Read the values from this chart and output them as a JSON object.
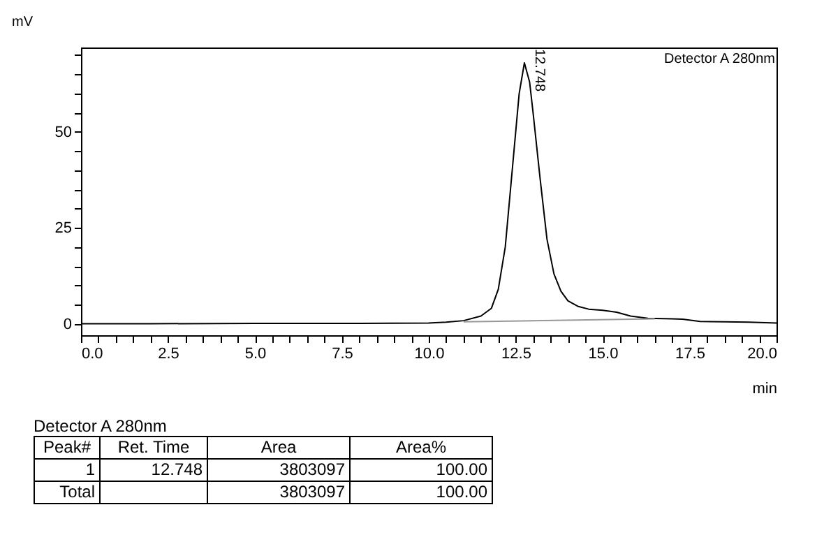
{
  "chart_data": {
    "type": "line",
    "xlabel": "min",
    "ylabel": "mV",
    "xlim": [
      0,
      20
    ],
    "ylim": [
      -3,
      72
    ],
    "xticks": [
      {
        "value": 0,
        "label": "0.0"
      },
      {
        "value": 0.5,
        "label": null
      },
      {
        "value": 1,
        "label": null
      },
      {
        "value": 1.5,
        "label": null
      },
      {
        "value": 2,
        "label": null
      },
      {
        "value": 2.5,
        "label": "2.5"
      },
      {
        "value": 3,
        "label": null
      },
      {
        "value": 3.5,
        "label": null
      },
      {
        "value": 4,
        "label": null
      },
      {
        "value": 4.5,
        "label": null
      },
      {
        "value": 5,
        "label": "5.0"
      },
      {
        "value": 5.5,
        "label": null
      },
      {
        "value": 6,
        "label": null
      },
      {
        "value": 6.5,
        "label": null
      },
      {
        "value": 7,
        "label": null
      },
      {
        "value": 7.5,
        "label": "7.5"
      },
      {
        "value": 8,
        "label": null
      },
      {
        "value": 8.5,
        "label": null
      },
      {
        "value": 9,
        "label": null
      },
      {
        "value": 9.5,
        "label": null
      },
      {
        "value": 10,
        "label": "10.0"
      },
      {
        "value": 10.5,
        "label": null
      },
      {
        "value": 11,
        "label": null
      },
      {
        "value": 11.5,
        "label": null
      },
      {
        "value": 12,
        "label": null
      },
      {
        "value": 12.5,
        "label": "12.5"
      },
      {
        "value": 13,
        "label": null
      },
      {
        "value": 13.5,
        "label": null
      },
      {
        "value": 14,
        "label": null
      },
      {
        "value": 14.5,
        "label": null
      },
      {
        "value": 15,
        "label": "15.0"
      },
      {
        "value": 15.5,
        "label": null
      },
      {
        "value": 16,
        "label": null
      },
      {
        "value": 16.5,
        "label": null
      },
      {
        "value": 17,
        "label": null
      },
      {
        "value": 17.5,
        "label": "17.5"
      },
      {
        "value": 18,
        "label": null
      },
      {
        "value": 18.5,
        "label": null
      },
      {
        "value": 19,
        "label": null
      },
      {
        "value": 19.5,
        "label": null
      },
      {
        "value": 20,
        "label": "20.0"
      }
    ],
    "yticks": [
      0,
      {
        "value": 5,
        "label": null
      },
      {
        "value": 10,
        "label": null
      },
      {
        "value": 15,
        "label": null
      },
      {
        "value": 20,
        "label": null
      },
      25,
      {
        "value": 30,
        "label": null
      },
      {
        "value": 35,
        "label": null
      },
      {
        "value": 40,
        "label": null
      },
      {
        "value": 45,
        "label": null
      },
      50,
      {
        "value": 55,
        "label": null
      },
      {
        "value": 60,
        "label": null
      },
      {
        "value": 65,
        "label": null
      },
      {
        "value": 70,
        "label": null
      }
    ],
    "grid": false,
    "legend": false,
    "marker": "none",
    "line_style": "solid",
    "series": [
      {
        "color": "#000000",
        "x": [
          0,
          2,
          5,
          8,
          10,
          10.5,
          11,
          11.5,
          11.8,
          12,
          12.2,
          12.4,
          12.6,
          12.75,
          12.9,
          13.0,
          13.2,
          13.4,
          13.6,
          13.8,
          14,
          14.3,
          14.6,
          15,
          15.4,
          15.8,
          16.3,
          17,
          17.3,
          17.8,
          18.5,
          19.2,
          20
        ],
        "values": [
          0,
          0,
          0.1,
          0.1,
          0.2,
          0.4,
          0.8,
          2,
          4,
          9,
          20,
          40,
          60,
          68,
          63,
          55,
          38,
          22,
          13,
          8.5,
          6,
          4.5,
          3.8,
          3.5,
          3,
          2,
          1.4,
          1.3,
          1.2,
          0.6,
          0.5,
          0.4,
          0.2
        ]
      },
      {
        "color": "#999999",
        "x": [
          11,
          16.5
        ],
        "values": [
          0.5,
          1.3
        ]
      }
    ],
    "annotations": [
      "Detector A 280nm",
      {
        "text": "12.748",
        "x": 12.748,
        "y": 68
      },
      "Detector A 280nm",
      "Peak#",
      "Ret. Time",
      "Area",
      "Area%",
      "1",
      "12.748",
      "3803097",
      "100.00",
      "Total",
      "3803097",
      "100.00"
    ]
  }
}
